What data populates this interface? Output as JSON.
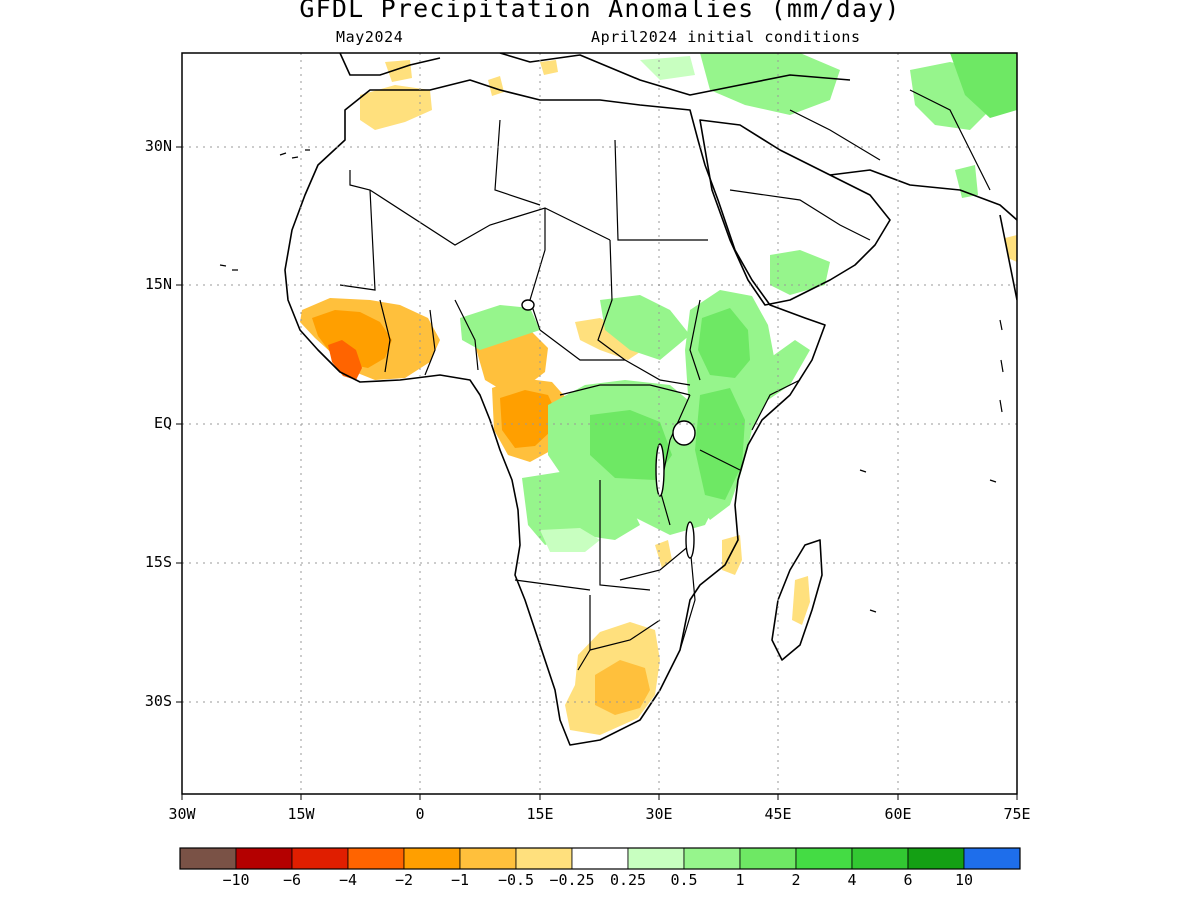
{
  "title": "GFDL Precipitation Anomalies (mm/day)",
  "subtitle_left": "May2024",
  "subtitle_right": "April2024 initial conditions",
  "map": {
    "region": "Africa and Arabian Peninsula",
    "lon_range": [
      -30,
      75
    ],
    "lat_range": [
      -40,
      40
    ],
    "grid": "dotted",
    "lat_labels": [
      "30N",
      "15N",
      "EQ",
      "15S",
      "30S"
    ],
    "lon_labels": [
      "30W",
      "15W",
      "0",
      "15E",
      "30E",
      "45E",
      "60E",
      "75E"
    ]
  },
  "colorbar": {
    "colors": [
      "#7a5246",
      "#b40000",
      "#e01e00",
      "#ff6400",
      "#ff9f00",
      "#ffc03c",
      "#ffe07d",
      "#ffffff",
      "#c8ffc0",
      "#96f58c",
      "#6ee864",
      "#44dc44",
      "#32c832",
      "#14a014",
      "#1e6eeb"
    ],
    "labels": [
      "−10",
      "−6",
      "−4",
      "−2",
      "−1",
      "−0.5",
      "−0.25",
      "0.25",
      "0.5",
      "1",
      "2",
      "4",
      "6",
      "10"
    ]
  },
  "anomaly_regions": [
    {
      "area": "Sierra Leone / Liberia coast",
      "sign": "negative",
      "category": "-2 to -4"
    },
    {
      "area": "Guinea / Côte d'Ivoire",
      "sign": "negative",
      "category": "-1 to -2"
    },
    {
      "area": "Gabon / Congo",
      "sign": "negative",
      "category": "-1 to -2"
    },
    {
      "area": "southern Africa (South Africa / Botswana)",
      "sign": "negative",
      "category": "-0.25 to -1"
    },
    {
      "area": "Morocco / Atlas",
      "sign": "negative",
      "category": "-0.25 to -0.5"
    },
    {
      "area": "Ethiopia / East Africa highlands",
      "sign": "positive",
      "category": "0.5 to 2"
    },
    {
      "area": "Kenya / Tanzania",
      "sign": "positive",
      "category": "1 to 2"
    },
    {
      "area": "Congo basin",
      "sign": "positive",
      "category": "0.5 to 2"
    },
    {
      "area": "Angola / Zambia",
      "sign": "positive",
      "category": "0.25 to 1"
    },
    {
      "area": "Turkey / Iran / Afghanistan",
      "sign": "positive",
      "category": "0.25 to 1"
    }
  ]
}
